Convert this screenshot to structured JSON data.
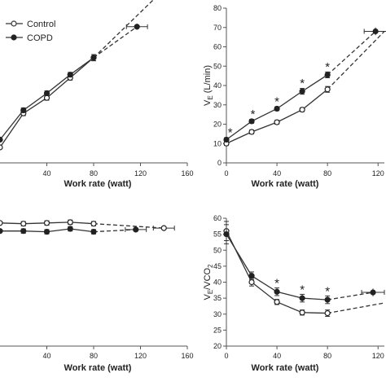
{
  "legend": [
    {
      "label": "Control",
      "marker": "open-circle"
    },
    {
      "label": "COPD",
      "marker": "filled-circle"
    }
  ],
  "chart_data": [
    {
      "id": "top-left",
      "type": "line",
      "xlabel": "Work rate (watt)",
      "ylabel": "",
      "xlim": [
        0,
        160
      ],
      "ylim": [
        0,
        100
      ],
      "x_ticks": [
        40,
        80,
        120,
        160
      ],
      "y_ticks": [],
      "series": [
        {
          "name": "Control",
          "marker": "open",
          "x": [
            -5,
            0,
            20,
            40,
            60,
            80
          ],
          "y": [
            5,
            10,
            32,
            42,
            55,
            68
          ],
          "err": [
            0,
            0,
            1.5,
            1.5,
            1.5,
            2
          ],
          "dashed": {
            "x": [
              80,
              140
            ],
            "y": [
              68,
              112
            ],
            "xerr": [
              0,
              9
            ],
            "yerr": [
              0,
              3
            ]
          }
        },
        {
          "name": "COPD",
          "marker": "filled",
          "x": [
            -5,
            0,
            20,
            40,
            60,
            80
          ],
          "y": [
            8,
            15,
            34,
            45,
            57,
            68
          ],
          "err": [
            0,
            0,
            1.5,
            1.5,
            1.5,
            2
          ],
          "dashed": {
            "x": [
              80,
              117
            ],
            "y": [
              68,
              88
            ],
            "xerr": [
              0,
              9
            ],
            "yerr": [
              0,
              2
            ]
          }
        }
      ],
      "annotations": []
    },
    {
      "id": "top-right",
      "type": "line",
      "xlabel": "Work rate (watt)",
      "ylabel": "Vₑ (L/min)",
      "ylabel_main": "V",
      "ylabel_sub": "E",
      "ylabel_rest": " (L/min)",
      "xlim": [
        0,
        125
      ],
      "ylim": [
        0,
        80
      ],
      "x_ticks": [
        0,
        40,
        80,
        120
      ],
      "y_ticks": [
        0,
        10,
        20,
        30,
        40,
        50,
        60,
        70,
        80
      ],
      "series": [
        {
          "name": "Control",
          "marker": "open",
          "x": [
            0,
            20,
            40,
            60,
            80
          ],
          "y": [
            10,
            16,
            21,
            27.5,
            38
          ],
          "err": [
            1,
            1,
            1,
            1,
            1.5
          ],
          "dashed": {
            "x": [
              80,
              125
            ],
            "y": [
              38,
              68
            ],
            "xerr": [
              0,
              0
            ],
            "yerr": [
              0,
              0
            ]
          }
        },
        {
          "name": "COPD",
          "marker": "filled",
          "x": [
            0,
            20,
            40,
            60,
            80
          ],
          "y": [
            12,
            21.5,
            28,
            37,
            45.5
          ],
          "err": [
            1,
            1,
            1,
            1.5,
            1.5
          ],
          "dashed": {
            "x": [
              80,
              118
            ],
            "y": [
              45.5,
              68
            ],
            "xerr": [
              0,
              9
            ],
            "yerr": [
              0,
              2
            ]
          }
        }
      ],
      "annotations": [
        {
          "text": "*",
          "x": 3,
          "y": 17
        },
        {
          "text": "*",
          "x": 21,
          "y": 26.5
        },
        {
          "text": "*",
          "x": 40,
          "y": 33
        },
        {
          "text": "*",
          "x": 60,
          "y": 42.5
        },
        {
          "text": "*",
          "x": 80,
          "y": 51
        }
      ]
    },
    {
      "id": "bottom-left",
      "type": "line",
      "xlabel": "Work rate (watt)",
      "ylabel": "",
      "xlim": [
        0,
        160
      ],
      "ylim": [
        0,
        100
      ],
      "x_ticks": [
        40,
        80,
        120,
        160
      ],
      "y_ticks": [],
      "series": [
        {
          "name": "Control",
          "marker": "open",
          "x": [
            -5,
            0,
            20,
            40,
            60,
            80
          ],
          "y": [
            84,
            84,
            83.5,
            84,
            84.5,
            83.5
          ],
          "err": [
            0,
            0,
            1.5,
            1.5,
            1.5,
            1.5
          ],
          "dashed": {
            "x": [
              80,
              140
            ],
            "y": [
              83.5,
              80.5
            ],
            "xerr": [
              0,
              9
            ],
            "yerr": [
              0,
              2
            ]
          }
        },
        {
          "name": "COPD",
          "marker": "filled",
          "x": [
            -5,
            0,
            20,
            40,
            60,
            80
          ],
          "y": [
            78,
            78.5,
            78.5,
            78,
            80,
            78
          ],
          "err": [
            0,
            0,
            1.5,
            1.5,
            1.5,
            1.5
          ],
          "dashed": {
            "x": [
              80,
              116
            ],
            "y": [
              78,
              79.5
            ],
            "xerr": [
              0,
              9
            ],
            "yerr": [
              0,
              2
            ]
          }
        }
      ],
      "annotations": []
    },
    {
      "id": "bottom-right",
      "type": "line",
      "xlabel": "Work rate (watt)",
      "ylabel": "Vₑ/VCO₂",
      "ylabel_main": "V",
      "ylabel_sub": "E",
      "ylabel_rest": "/VCO",
      "ylabel_sub2": "2",
      "xlim": [
        0,
        125
      ],
      "ylim": [
        20,
        60
      ],
      "x_ticks": [
        0,
        40,
        80,
        120
      ],
      "y_ticks": [
        20,
        25,
        30,
        35,
        40,
        45,
        50,
        55,
        60
      ],
      "series": [
        {
          "name": "Control",
          "marker": "open",
          "x": [
            0,
            20,
            40,
            60,
            80
          ],
          "y": [
            56,
            40,
            33.8,
            30.5,
            30.3
          ],
          "err": [
            3,
            1.2,
            0.8,
            0.8,
            1
          ],
          "dashed": {
            "x": [
              80,
              125
            ],
            "y": [
              30.3,
              33.5
            ],
            "xerr": [
              0,
              0
            ],
            "yerr": [
              0,
              0
            ]
          }
        },
        {
          "name": "COPD",
          "marker": "filled",
          "x": [
            0,
            20,
            40,
            60,
            80
          ],
          "y": [
            55,
            42,
            37,
            35,
            34.5
          ],
          "err": [
            3,
            1.2,
            1.2,
            1.2,
            1.2
          ],
          "dashed": {
            "x": [
              80,
              116
            ],
            "y": [
              34.5,
              36.8
            ],
            "xerr": [
              0,
              9
            ],
            "yerr": [
              0,
              1.2
            ]
          }
        }
      ],
      "annotations": [
        {
          "text": "*",
          "x": 40,
          "y": 40.5
        },
        {
          "text": "*",
          "x": 60,
          "y": 38.5
        },
        {
          "text": "*",
          "x": 80,
          "y": 38
        }
      ]
    }
  ]
}
